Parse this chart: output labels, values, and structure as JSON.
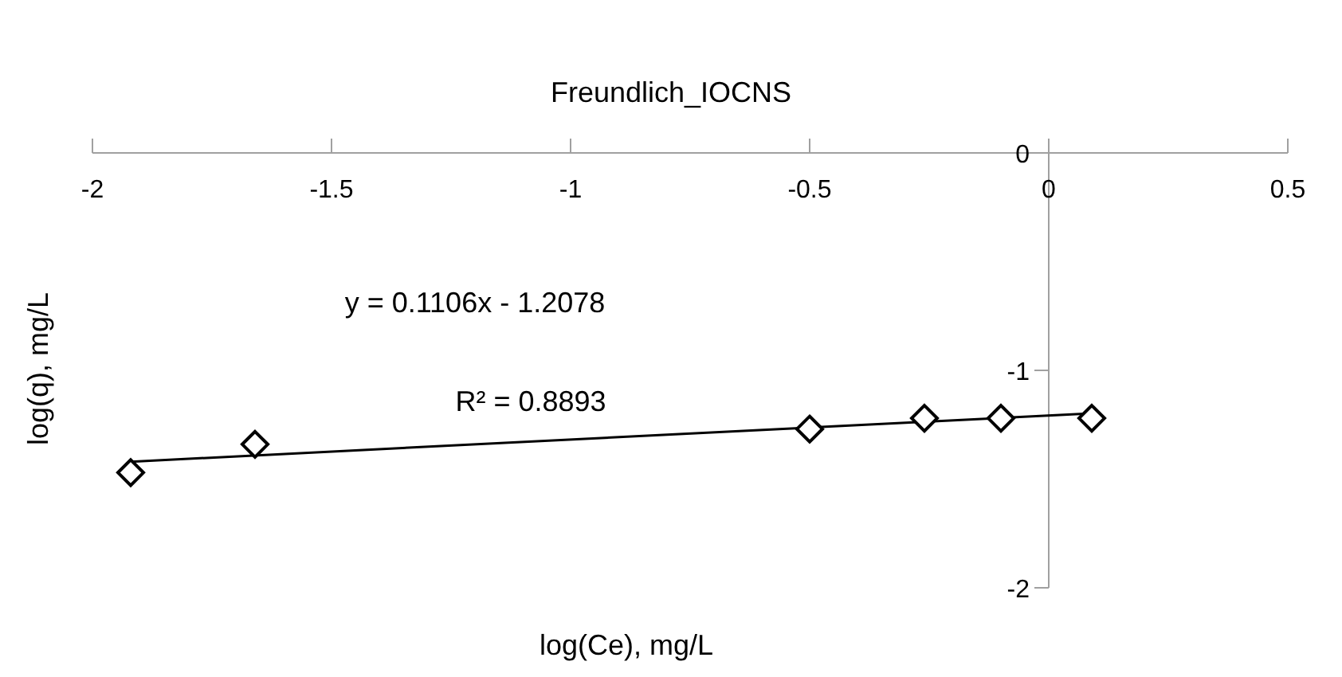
{
  "chart_data": {
    "type": "scatter",
    "title": "Freundlich_IOCNS",
    "xlabel": "log(Ce), mg/L",
    "ylabel": "log(q), mg/L",
    "annotations": [
      "y = 0.1106x - 1.2078",
      "R² = 0.8893"
    ],
    "series": [
      {
        "type": "scatter",
        "color": "#000000",
        "marker": "diamond",
        "x": [
          -1.92,
          -1.66,
          -0.5,
          -0.26,
          -0.1,
          0.09
        ],
        "values": [
          -1.47,
          -1.34,
          -1.27,
          -1.22,
          -1.22,
          -1.22
        ]
      },
      {
        "type": "line",
        "color": "#000000",
        "marker": "none",
        "x": [
          -1.92,
          0.09
        ],
        "values": [
          -1.42,
          -1.198
        ]
      }
    ],
    "xlim": [
      -2,
      0.5
    ],
    "xticks": [
      -2,
      -1.5,
      -1,
      -0.5,
      0,
      0.5
    ],
    "ylim": [
      -2,
      0
    ],
    "yticks": [
      -2,
      -1,
      0
    ],
    "grid": false,
    "legend": false
  }
}
